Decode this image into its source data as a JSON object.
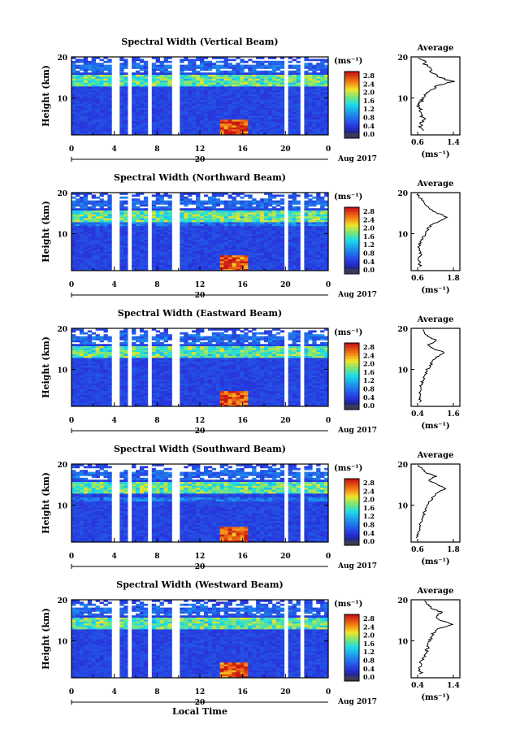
{
  "panel_titles": [
    "Spectral Width (Vertical Beam)",
    "Spectral Width (Northward Beam)",
    "Spectral Width (Eastward Beam)",
    "Spectral Width (Southward Beam)",
    "Spectral Width (Westward Beam)"
  ],
  "labels": {
    "ylabel": "Height (km)",
    "unit": "(ms⁻¹)",
    "average_title": "Average",
    "date_label": "Aug 2017",
    "day_label": "20",
    "xlabel": "Local Time"
  },
  "colorbar_ticks": [
    "2.8",
    "2.4",
    "2.0",
    "1.6",
    "1.2",
    "0.8",
    "0.4",
    "0.0"
  ],
  "colors": {
    "low": "#2c2cd6",
    "mid": "#1fd3e6",
    "high": "#d61a1a"
  },
  "chart_data": [
    {
      "type": "heatmap",
      "title": "Spectral Width (Vertical Beam)",
      "xlabel": "",
      "ylabel": "Height (km)",
      "x_ticks": [
        "0",
        "4",
        "8",
        "12",
        "16",
        "20",
        "0"
      ],
      "xlim": [
        0,
        24
      ],
      "y_ticks": [
        "20",
        "10"
      ],
      "ylim": [
        1,
        20
      ],
      "colorbar_ticks": [
        "2.8",
        "2.4",
        "2.0",
        "1.6",
        "1.2",
        "0.8",
        "0.4",
        "0.0"
      ],
      "zlim": [
        0,
        2.8
      ],
      "data_gaps": [
        [
          3.9,
          4.4
        ],
        [
          5.2,
          5.7
        ],
        [
          7.1,
          7.6
        ],
        [
          9.4,
          10.0
        ],
        [
          19.9,
          20.3
        ],
        [
          21.3,
          21.6
        ]
      ],
      "average_profile": {
        "xlim": [
          0.5,
          1.5
        ],
        "x_ticks": [
          "0.6",
          "1.4"
        ],
        "height_km": [
          2,
          3,
          4,
          5,
          6,
          7,
          8,
          9,
          10,
          11,
          12,
          13,
          14,
          15,
          16,
          17,
          18,
          19,
          20
        ],
        "width": [
          0.8,
          0.7,
          0.7,
          0.75,
          0.7,
          0.7,
          0.65,
          0.7,
          0.75,
          0.8,
          0.95,
          1.05,
          1.35,
          1.1,
          0.95,
          0.9,
          0.8,
          0.75,
          0.6
        ]
      }
    },
    {
      "type": "heatmap",
      "title": "Spectral Width (Northward Beam)",
      "xlabel": "",
      "ylabel": "Height (km)",
      "x_ticks": [
        "0",
        "4",
        "8",
        "12",
        "16",
        "20",
        "0"
      ],
      "xlim": [
        0,
        24
      ],
      "y_ticks": [
        "20",
        "10"
      ],
      "ylim": [
        1,
        20
      ],
      "colorbar_ticks": [
        "2.8",
        "2.4",
        "2.0",
        "1.6",
        "1.2",
        "0.8",
        "0.4",
        "0.0"
      ],
      "zlim": [
        0,
        2.8
      ],
      "data_gaps": [
        [
          3.9,
          4.4
        ],
        [
          5.2,
          5.7
        ],
        [
          7.1,
          7.6
        ],
        [
          9.4,
          10.0
        ],
        [
          19.9,
          20.3
        ],
        [
          21.3,
          21.6
        ]
      ],
      "average_profile": {
        "xlim": [
          0.5,
          2.0
        ],
        "x_ticks": [
          "0.6",
          "1.8"
        ],
        "height_km": [
          2,
          3,
          4,
          5,
          6,
          7,
          8,
          9,
          10,
          11,
          12,
          13,
          14,
          15,
          16,
          17,
          18,
          19,
          20
        ],
        "width": [
          0.8,
          0.75,
          0.75,
          0.8,
          0.75,
          0.75,
          0.8,
          0.85,
          0.95,
          1.0,
          1.1,
          1.35,
          1.6,
          1.3,
          1.05,
          0.95,
          0.85,
          0.75,
          0.7
        ]
      }
    },
    {
      "type": "heatmap",
      "title": "Spectral Width (Eastward Beam)",
      "xlabel": "",
      "ylabel": "Height (km)",
      "x_ticks": [
        "0",
        "4",
        "8",
        "12",
        "16",
        "20",
        "0"
      ],
      "xlim": [
        0,
        24
      ],
      "y_ticks": [
        "20",
        "10"
      ],
      "ylim": [
        1,
        20
      ],
      "colorbar_ticks": [
        "2.8",
        "2.4",
        "2.0",
        "1.6",
        "1.2",
        "0.8",
        "0.4",
        "0.0"
      ],
      "zlim": [
        0,
        2.8
      ],
      "data_gaps": [
        [
          3.9,
          4.4
        ],
        [
          5.2,
          5.7
        ],
        [
          7.1,
          7.6
        ],
        [
          9.4,
          10.0
        ],
        [
          19.9,
          20.3
        ],
        [
          21.3,
          21.6
        ]
      ],
      "average_profile": {
        "xlim": [
          0.3,
          1.8
        ],
        "x_ticks": [
          "0.4",
          "1.6"
        ],
        "height_km": [
          2,
          3,
          4,
          5,
          6,
          7,
          8,
          9,
          10,
          11,
          12,
          13,
          14,
          15,
          16,
          17,
          18,
          19,
          20
        ],
        "width": [
          0.6,
          0.55,
          0.55,
          0.6,
          0.6,
          0.65,
          0.7,
          0.75,
          0.8,
          0.9,
          0.95,
          1.1,
          1.35,
          1.0,
          0.85,
          1.1,
          0.8,
          0.7,
          0.65
        ]
      }
    },
    {
      "type": "heatmap",
      "title": "Spectral Width (Southward Beam)",
      "xlabel": "",
      "ylabel": "Height (km)",
      "x_ticks": [
        "0",
        "4",
        "8",
        "12",
        "16",
        "20",
        "0"
      ],
      "xlim": [
        0,
        24
      ],
      "y_ticks": [
        "20",
        "10"
      ],
      "ylim": [
        1,
        20
      ],
      "colorbar_ticks": [
        "2.8",
        "2.4",
        "2.0",
        "1.6",
        "1.2",
        "0.8",
        "0.4",
        "0.0"
      ],
      "zlim": [
        0,
        2.8
      ],
      "data_gaps": [
        [
          3.9,
          4.4
        ],
        [
          5.2,
          5.7
        ],
        [
          7.1,
          7.6
        ],
        [
          9.4,
          10.0
        ],
        [
          19.9,
          20.3
        ],
        [
          21.3,
          21.6
        ]
      ],
      "average_profile": {
        "xlim": [
          0.5,
          2.0
        ],
        "x_ticks": [
          "0.6",
          "1.8"
        ],
        "height_km": [
          2,
          3,
          4,
          5,
          6,
          7,
          8,
          9,
          10,
          11,
          12,
          13,
          14,
          15,
          16,
          17,
          18,
          19,
          20
        ],
        "width": [
          0.7,
          0.7,
          0.75,
          0.8,
          0.8,
          0.85,
          0.9,
          0.95,
          1.0,
          1.1,
          1.15,
          1.3,
          1.55,
          1.3,
          1.05,
          1.25,
          0.95,
          0.8,
          0.7
        ]
      }
    },
    {
      "type": "heatmap",
      "title": "Spectral Width (Westward Beam)",
      "xlabel": "Local Time",
      "ylabel": "Height (km)",
      "x_ticks": [
        "0",
        "4",
        "8",
        "12",
        "16",
        "20",
        "0"
      ],
      "xlim": [
        0,
        24
      ],
      "y_ticks": [
        "20",
        "10"
      ],
      "ylim": [
        1,
        20
      ],
      "colorbar_ticks": [
        "2.8",
        "2.4",
        "2.0",
        "1.6",
        "1.2",
        "0.8",
        "0.4",
        "0.0"
      ],
      "zlim": [
        0,
        2.8
      ],
      "data_gaps": [
        [
          3.9,
          4.4
        ],
        [
          5.2,
          5.7
        ],
        [
          7.1,
          7.6
        ],
        [
          9.4,
          10.0
        ],
        [
          19.9,
          20.3
        ],
        [
          21.3,
          21.6
        ]
      ],
      "average_profile": {
        "xlim": [
          0.3,
          1.5
        ],
        "x_ticks": [
          "0.4",
          "1.4"
        ],
        "height_km": [
          2,
          3,
          4,
          5,
          6,
          7,
          8,
          9,
          10,
          11,
          12,
          13,
          14,
          15,
          16,
          17,
          18,
          19,
          20
        ],
        "width": [
          0.55,
          0.5,
          0.55,
          0.55,
          0.6,
          0.65,
          0.7,
          0.7,
          0.75,
          0.8,
          0.85,
          1.0,
          1.35,
          1.0,
          0.9,
          1.05,
          0.8,
          0.7,
          0.6
        ]
      }
    }
  ]
}
